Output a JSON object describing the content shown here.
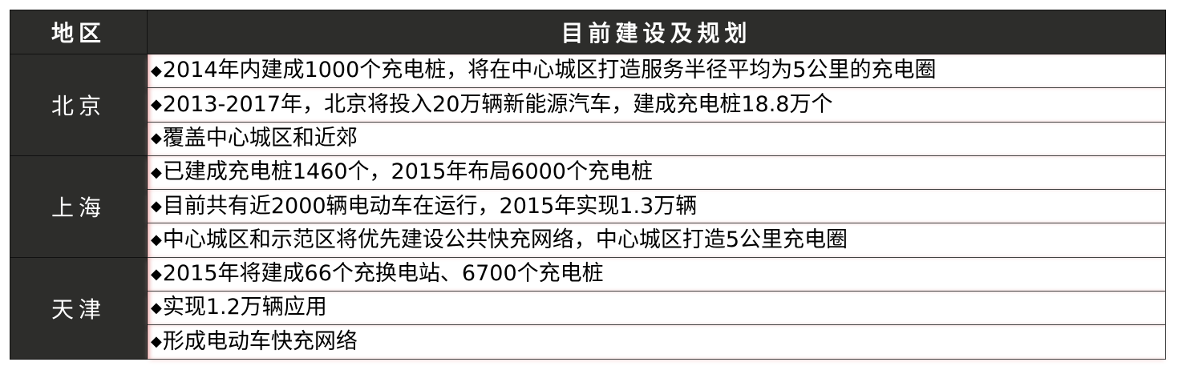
{
  "header": {
    "region": "地区",
    "plan": "目前建设及规划"
  },
  "bullet_icon": "◆",
  "rows": [
    {
      "region": "北京",
      "items": [
        "2014年内建成1000个充电桩，将在中心城区打造服务半径平均为5公里的充电圈",
        "2013-2017年，北京将投入20万辆新能源汽车，建成充电桩18.8万个",
        "覆盖中心城区和近郊"
      ]
    },
    {
      "region": "上海",
      "items": [
        "已建成充电桩1460个，2015年布局6000个充电桩",
        "目前共有近2000辆电动车在运行，2015年实现1.3万辆",
        "中心城区和示范区将优先建设公共快充网络，中心城区打造5公里充电圈"
      ]
    },
    {
      "region": "天津",
      "items": [
        "2015年将建成66个充换电站、6700个充电桩",
        "实现1.2万辆应用",
        "形成电动车快充网络"
      ]
    }
  ]
}
